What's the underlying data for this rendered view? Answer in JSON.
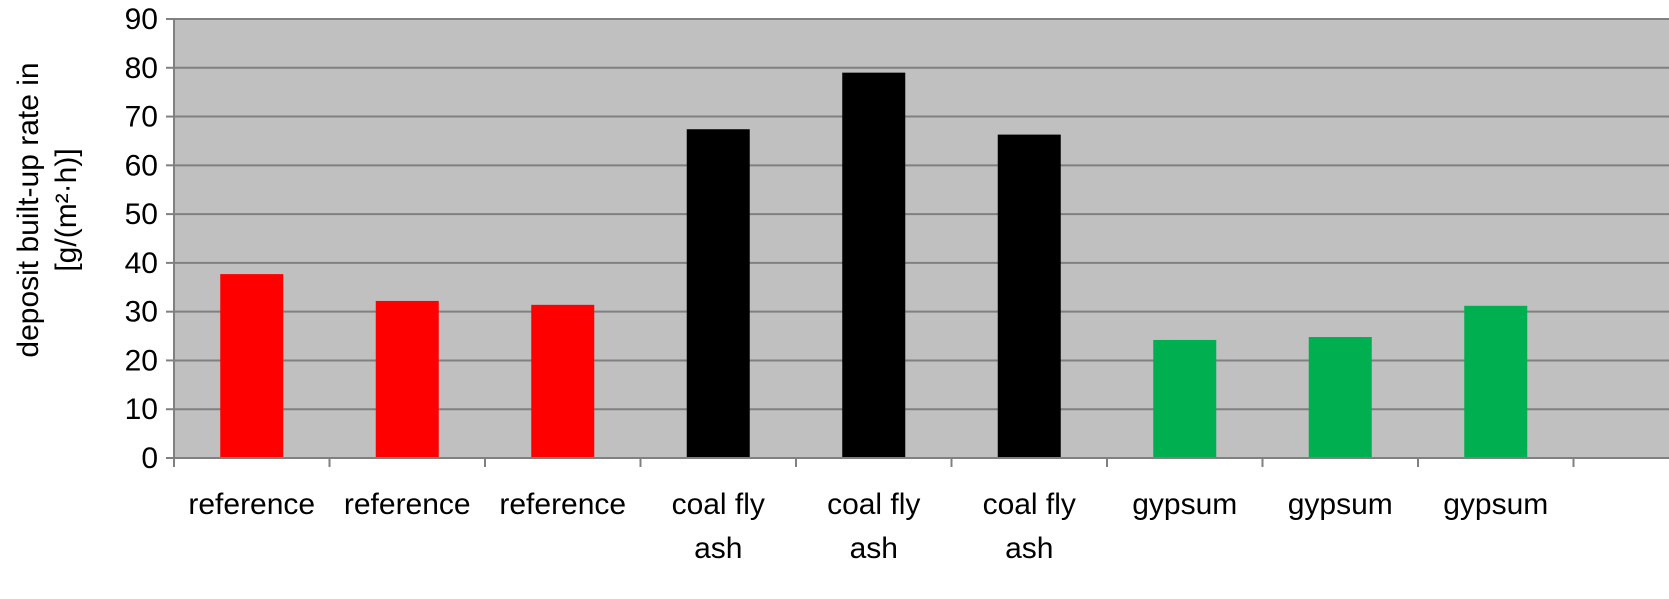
{
  "chart_data": {
    "type": "bar",
    "categories": [
      [
        "reference"
      ],
      [
        "reference"
      ],
      [
        "reference"
      ],
      [
        "coal fly",
        "ash"
      ],
      [
        "coal fly",
        "ash"
      ],
      [
        "coal fly",
        "ash"
      ],
      [
        "gypsum"
      ],
      [
        "gypsum"
      ],
      [
        "gypsum"
      ]
    ],
    "values": [
      37.7,
      32.2,
      31.4,
      67.4,
      79.0,
      66.3,
      24.2,
      24.8,
      31.2
    ],
    "bar_colors": [
      "#ff0000",
      "#ff0000",
      "#ff0000",
      "#000000",
      "#000000",
      "#000000",
      "#00b050",
      "#00b050",
      "#00b050"
    ],
    "ylabel_lines": [
      "deposit built-up rate in",
      "[g/(m²·h)]"
    ],
    "xlabel": "",
    "ylim": [
      0,
      90
    ],
    "yticks": [
      0,
      10,
      20,
      30,
      40,
      50,
      60,
      70,
      80,
      90
    ],
    "grid": true,
    "plot_background": "#c0c0c0",
    "gridline_color": "#808080",
    "legend": "none"
  }
}
